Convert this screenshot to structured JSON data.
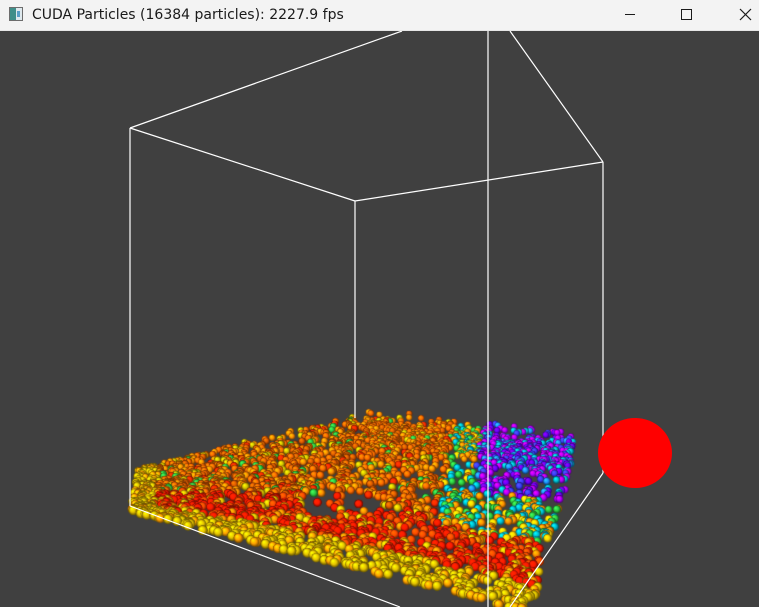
{
  "window": {
    "title": "CUDA Particles (16384 particles): 2227.9 fps",
    "title_bar_color": "#f3f3f3"
  },
  "controls": {
    "minimize_icon": "minimize-icon",
    "maximize_icon": "maximize-icon",
    "close_icon": "close-icon"
  },
  "scene": {
    "background_color": "#404040",
    "box_edge_color": "#ffffff",
    "sphere_color": "#ff0000",
    "particle_colors": [
      "#ff0000",
      "#ff6a00",
      "#ffd700",
      "#2ecc40",
      "#00bcd4",
      "#3b3bff",
      "#b000ff"
    ]
  }
}
